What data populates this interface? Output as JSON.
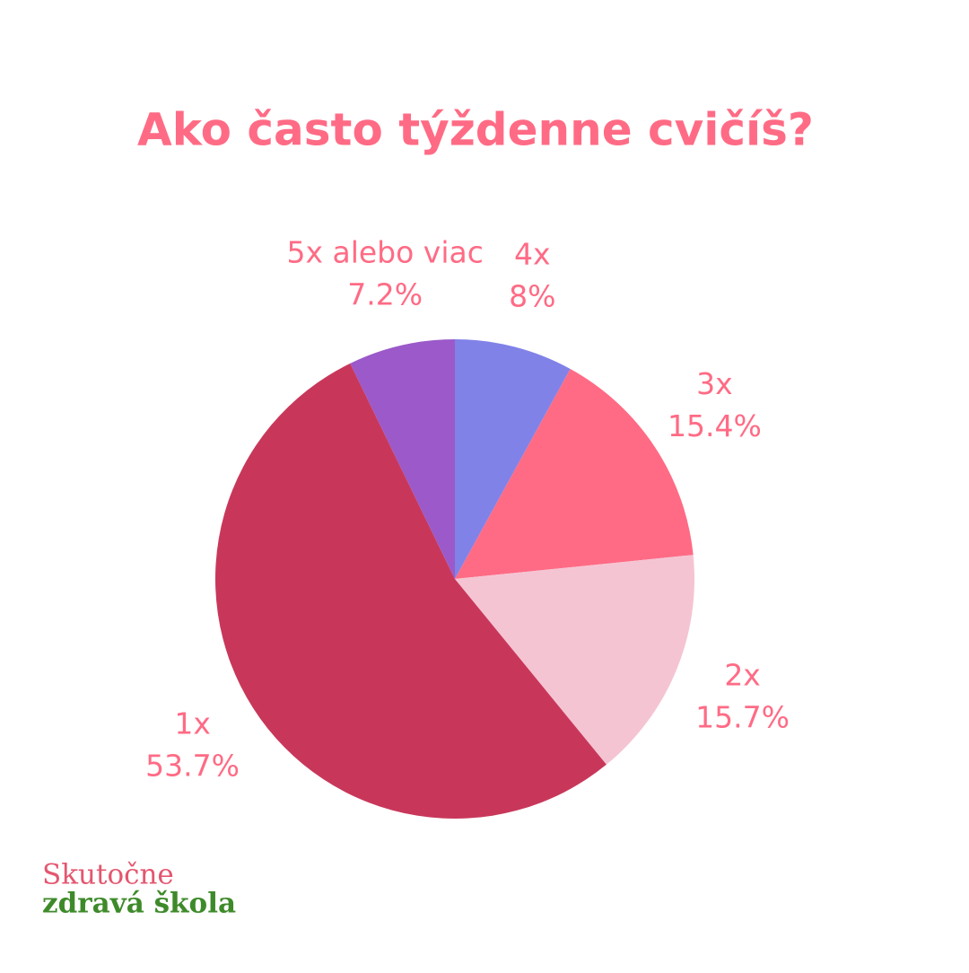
{
  "chart_data": {
    "type": "pie",
    "title": "Ako často týždenne cvičíš?",
    "categories": [
      "4x",
      "3x",
      "2x",
      "1x",
      "5x alebo viac"
    ],
    "values": [
      8,
      15.4,
      15.7,
      53.7,
      7.2
    ],
    "value_labels": [
      "8%",
      "15.4%",
      "15.7%",
      "53.7%",
      "7.2%"
    ],
    "colors": [
      "#8082e8",
      "#ff6b85",
      "#f5c4d3",
      "#c8375a",
      "#9b59c9"
    ]
  },
  "brand": {
    "line1": "Skutočne",
    "line2": "zdravá škola"
  }
}
